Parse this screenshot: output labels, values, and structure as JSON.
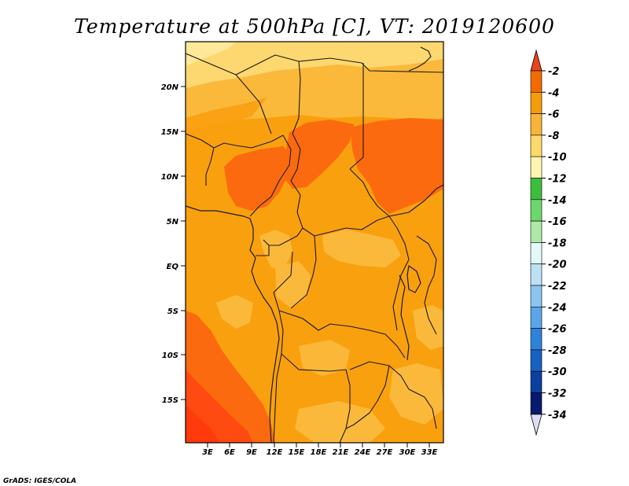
{
  "title": "Temperature at 500hPa [C], VT: 2019120600",
  "credit": "GrADS: IGES/COLA",
  "map": {
    "variable": "Temperature at 500hPa",
    "units": "C",
    "valid_time": "2019120600",
    "lat_ticks": [
      "20N",
      "15N",
      "10N",
      "5N",
      "EQ",
      "5S",
      "10S",
      "15S"
    ],
    "lon_ticks": [
      "3E",
      "6E",
      "9E",
      "12E",
      "15E",
      "18E",
      "21E",
      "24E",
      "27E",
      "30E",
      "33E"
    ]
  },
  "colorbar": {
    "labels": [
      "-2",
      "-4",
      "-6",
      "-8",
      "-10",
      "-12",
      "-14",
      "-16",
      "-18",
      "-20",
      "-22",
      "-24",
      "-26",
      "-28",
      "-30",
      "-32",
      "-34"
    ],
    "colors": [
      "#e8461c",
      "#f26b00",
      "#f59c0b",
      "#f7b33a",
      "#fbd96a",
      "#fff4b0",
      "#3cbf3c",
      "#6ed66e",
      "#aee9a8",
      "#e3f8f8",
      "#bde0f5",
      "#8cc4ef",
      "#5aa6e8",
      "#2f82da",
      "#1761c2",
      "#0c3fa0",
      "#081a6e",
      "#dcdcf2"
    ]
  },
  "colors": {
    "c_neg4_neg2": "#fc6a0f",
    "c_neg6_neg4": "#f9a00f",
    "c_neg8_neg6": "#fbb93c",
    "c_neg10_neg8": "#fdd870",
    "c_gt_neg2": "#ff4010"
  }
}
